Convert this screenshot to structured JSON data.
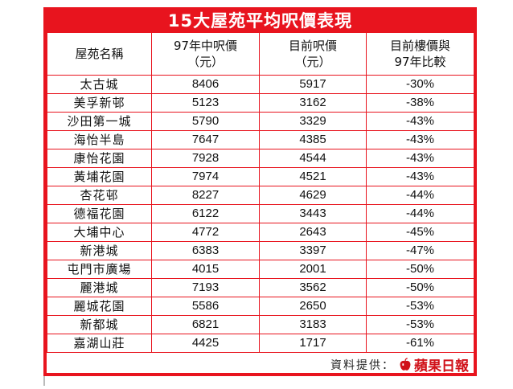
{
  "title": "15大屋苑平均呎價表現",
  "headers": {
    "estate": "屋苑名稱",
    "price97_line1": "97年中呎價",
    "price97_line2": "（元）",
    "current_line1": "目前呎價",
    "current_line2": "（元）",
    "change_line1": "目前樓價與",
    "change_line2": "97年比較"
  },
  "rows": [
    {
      "name": "太古城",
      "p97": "8406",
      "now": "5917",
      "change": "-30%"
    },
    {
      "name": "美孚新邨",
      "p97": "5123",
      "now": "3162",
      "change": "-38%"
    },
    {
      "name": "沙田第一城",
      "p97": "5790",
      "now": "3329",
      "change": "-43%"
    },
    {
      "name": "海怡半島",
      "p97": "7647",
      "now": "4385",
      "change": "-43%"
    },
    {
      "name": "康怡花園",
      "p97": "7928",
      "now": "4544",
      "change": "-43%"
    },
    {
      "name": "黃埔花園",
      "p97": "7974",
      "now": "4521",
      "change": "-43%"
    },
    {
      "name": "杏花邨",
      "p97": "8227",
      "now": "4629",
      "change": "-44%"
    },
    {
      "name": "德福花園",
      "p97": "6122",
      "now": "3443",
      "change": "-44%"
    },
    {
      "name": "大埔中心",
      "p97": "4772",
      "now": "2643",
      "change": "-45%"
    },
    {
      "name": "新港城",
      "p97": "6383",
      "now": "3397",
      "change": "-47%"
    },
    {
      "name": "屯門市廣場",
      "p97": "4015",
      "now": "2001",
      "change": "-50%"
    },
    {
      "name": "麗港城",
      "p97": "7193",
      "now": "3562",
      "change": "-50%"
    },
    {
      "name": "麗城花園",
      "p97": "5586",
      "now": "2650",
      "change": "-53%"
    },
    {
      "name": "新都城",
      "p97": "6821",
      "now": "3183",
      "change": "-53%"
    },
    {
      "name": "嘉湖山莊",
      "p97": "4425",
      "now": "1717",
      "change": "-61%"
    }
  ],
  "source_label": "資料提供：",
  "logo_text": "蘋果日報",
  "colors": {
    "frame": "#e8141e",
    "logo": "#d01018"
  }
}
